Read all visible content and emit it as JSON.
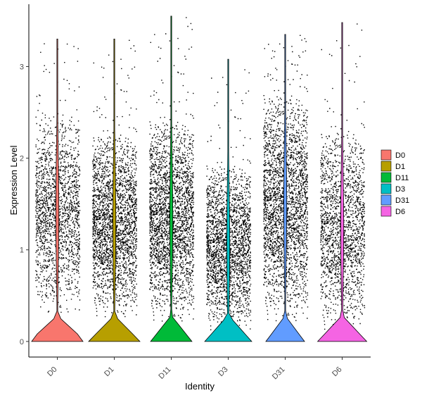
{
  "chart_data": {
    "type": "violin",
    "xlabel": "Identity",
    "ylabel": "Expression Level",
    "categories": [
      "D0",
      "D1",
      "D11",
      "D3",
      "D31",
      "D6"
    ],
    "ylim": [
      -0.17,
      3.68
    ],
    "yticks": [
      0,
      1,
      2,
      3
    ],
    "ytick_labels": [
      "0",
      "1",
      "2",
      "3"
    ],
    "grid": false,
    "legend_position": "right",
    "legend": [
      {
        "name": "D0",
        "color": "#F8766D"
      },
      {
        "name": "D1",
        "color": "#B79F00"
      },
      {
        "name": "D11",
        "color": "#00BA38"
      },
      {
        "name": "D3",
        "color": "#00BFC4"
      },
      {
        "name": "D31",
        "color": "#619CFF"
      },
      {
        "name": "D6",
        "color": "#F564E3"
      }
    ],
    "series": [
      {
        "name": "D0",
        "color": "#F8766D",
        "max": 3.3,
        "point_count": 1800,
        "zero_fraction": 0.6,
        "point_range": [
          0.3,
          2.55
        ]
      },
      {
        "name": "D1",
        "color": "#B79F00",
        "max": 3.3,
        "point_count": 2500,
        "zero_fraction": 0.5,
        "point_range": [
          0.25,
          2.35
        ]
      },
      {
        "name": "D11",
        "color": "#00BA38",
        "max": 3.55,
        "point_count": 3200,
        "zero_fraction": 0.3,
        "point_range": [
          0.2,
          2.5
        ]
      },
      {
        "name": "D3",
        "color": "#00BFC4",
        "max": 3.08,
        "point_count": 2300,
        "zero_fraction": 0.4,
        "point_range": [
          0.1,
          2.0
        ]
      },
      {
        "name": "D31",
        "color": "#619CFF",
        "max": 3.35,
        "point_count": 5200,
        "zero_fraction": 0.25,
        "point_range": [
          0.2,
          2.8
        ]
      },
      {
        "name": "D6",
        "color": "#F564E3",
        "max": 3.48,
        "point_count": 1800,
        "zero_fraction": 0.45,
        "point_range": [
          0.1,
          2.4
        ]
      }
    ]
  }
}
